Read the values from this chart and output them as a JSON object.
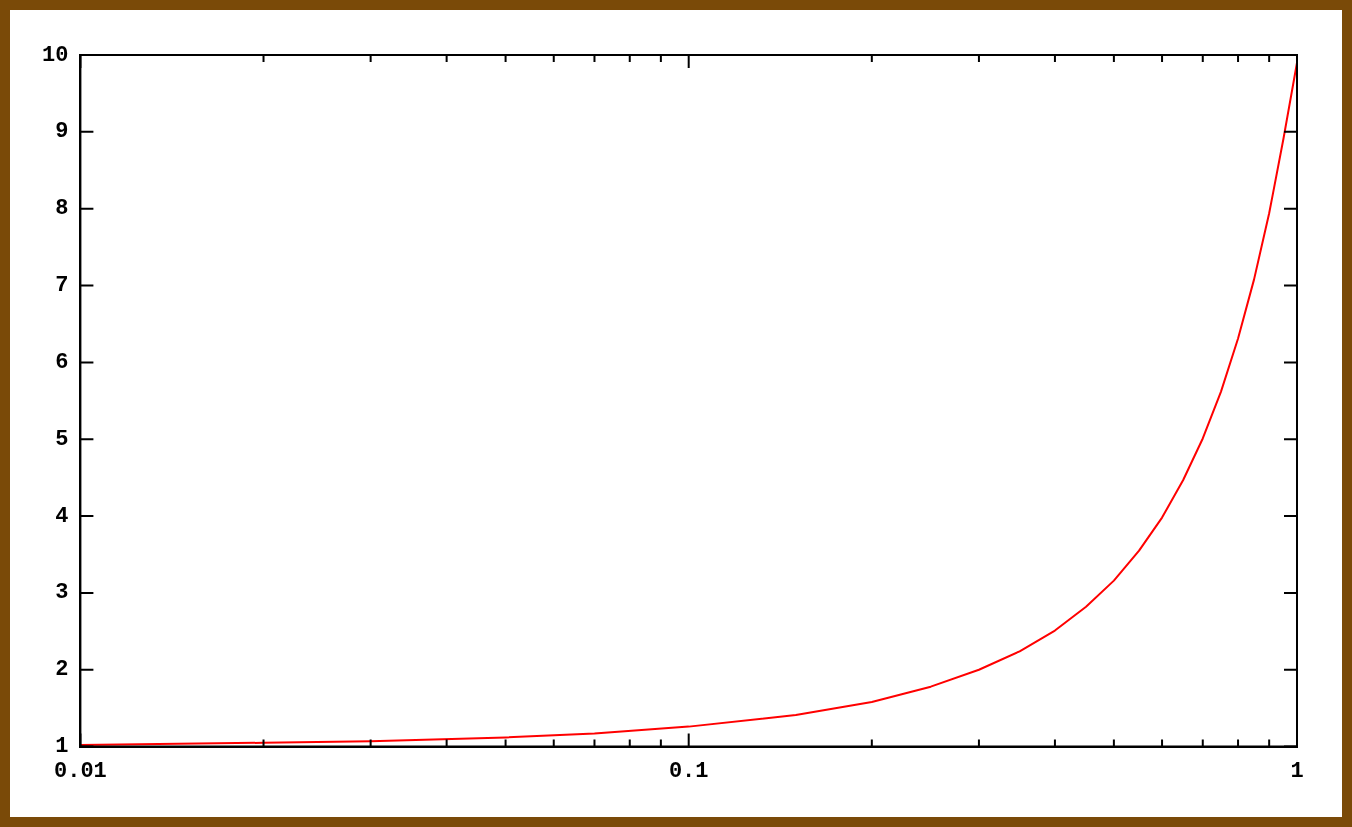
{
  "chart_data": {
    "type": "line",
    "log": "x",
    "grid": false,
    "legend": false,
    "marker": "none",
    "line_style": "solid",
    "xlim": [
      0.01,
      1
    ],
    "ylim": [
      1,
      10
    ],
    "xticks": [
      0.01,
      {
        "value": 0.02,
        "label": null
      },
      {
        "value": 0.03,
        "label": null
      },
      {
        "value": 0.04,
        "label": null
      },
      {
        "value": 0.05,
        "label": null
      },
      {
        "value": 0.06,
        "label": null
      },
      {
        "value": 0.07,
        "label": null
      },
      {
        "value": 0.08,
        "label": null
      },
      {
        "value": 0.09,
        "label": null
      },
      0.1,
      {
        "value": 0.2,
        "label": null
      },
      {
        "value": 0.3,
        "label": null
      },
      {
        "value": 0.4,
        "label": null
      },
      {
        "value": 0.5,
        "label": null
      },
      {
        "value": 0.6,
        "label": null
      },
      {
        "value": 0.7,
        "label": null
      },
      {
        "value": 0.8,
        "label": null
      },
      {
        "value": 0.9,
        "label": null
      },
      1
    ],
    "yticks": [
      1,
      2,
      3,
      4,
      5,
      6,
      7,
      8,
      9,
      10
    ],
    "x": [
      0.01,
      0.02,
      0.03,
      0.05,
      0.07,
      0.1,
      0.15,
      0.2,
      0.25,
      0.3,
      0.35,
      0.4,
      0.45,
      0.5,
      0.55,
      0.6,
      0.65,
      0.7,
      0.75,
      0.8,
      0.85,
      0.9,
      0.95,
      1
    ],
    "series": [
      {
        "color": "#ff0000",
        "values": [
          1.02,
          1.05,
          1.07,
          1.12,
          1.17,
          1.26,
          1.41,
          1.58,
          1.78,
          2.0,
          2.24,
          2.51,
          2.82,
          3.16,
          3.55,
          3.98,
          4.47,
          5.01,
          5.62,
          6.31,
          7.08,
          7.94,
          8.91,
          9.9
        ]
      }
    ]
  }
}
